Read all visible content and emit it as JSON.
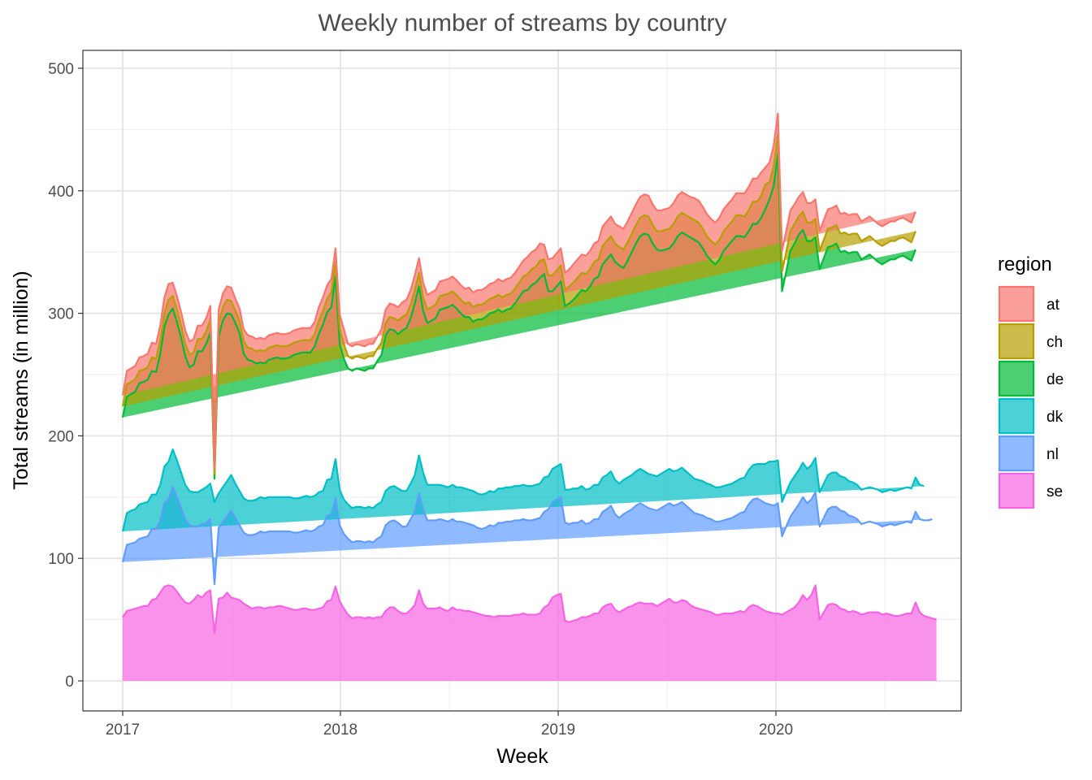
{
  "chart_data": {
    "type": "area",
    "stacked": true,
    "title": "Weekly number of streams by country",
    "xlabel": "Week",
    "ylabel": "Total streams (in million)",
    "x_start": "2017-01-01",
    "x_step": "1 week",
    "xlim": [
      2016.82,
      2020.85
    ],
    "ylim": [
      -23,
      523
    ],
    "x_ticks": [
      2017,
      2018,
      2019,
      2020
    ],
    "x_tick_labels": [
      "2017",
      "2018",
      "2019",
      "2020"
    ],
    "x_minor_ticks": [
      2017.5,
      2018.5,
      2019.5,
      2020.5
    ],
    "y_ticks": [
      0,
      100,
      200,
      300,
      400,
      500
    ],
    "y_tick_labels": [
      "0",
      "100",
      "200",
      "300",
      "400",
      "500"
    ],
    "y_minor_ticks": [
      50,
      150,
      250,
      350,
      450
    ],
    "grid": true,
    "legend": {
      "title": "region",
      "position": "right"
    },
    "stack_order_bottom_to_top": [
      "se",
      "nl",
      "dk",
      "de",
      "ch",
      "at"
    ],
    "series": [
      {
        "name": "at",
        "line_color": "#F8766D",
        "fill_color": "#F8766D",
        "values": [
          9,
          11,
          11,
          11,
          11,
          11,
          11,
          12,
          12,
          12,
          13,
          13,
          11,
          11,
          11,
          11,
          11,
          11,
          11,
          11,
          11,
          11,
          4,
          11,
          11,
          11,
          11,
          10,
          10,
          10,
          10,
          10,
          10,
          10,
          10,
          10,
          10,
          10,
          10,
          10,
          10,
          10,
          10,
          10,
          10,
          10,
          10,
          11,
          11,
          11,
          11,
          11,
          12,
          12,
          10,
          10,
          10,
          10,
          10,
          10,
          10,
          10,
          11,
          11,
          11,
          11,
          11,
          12,
          12,
          12,
          12,
          12,
          12,
          12,
          12,
          12,
          12,
          12,
          12,
          12,
          12,
          12,
          12,
          12,
          12,
          12,
          12,
          12,
          12,
          12,
          13,
          13,
          13,
          13,
          13,
          13,
          13,
          14,
          14,
          14,
          14,
          12,
          13,
          14,
          14,
          14,
          14,
          14,
          15,
          15,
          15,
          15,
          15,
          15,
          15,
          16,
          16,
          16,
          16,
          17,
          17,
          17,
          17,
          17,
          17,
          17,
          17,
          17,
          17,
          17,
          17,
          17,
          17,
          17,
          17,
          17,
          17,
          18,
          18,
          18,
          18,
          18,
          18,
          18,
          18,
          18,
          18,
          18,
          18,
          19,
          19,
          19,
          19,
          19,
          14,
          16,
          17,
          17,
          17,
          17,
          17,
          16,
          16,
          16,
          16,
          16,
          16,
          16,
          16,
          16,
          16,
          16,
          16,
          16,
          16,
          16,
          16,
          16,
          16,
          16,
          16,
          16,
          16,
          16,
          16,
          16,
          16,
          16,
          16,
          16,
          16,
          16,
          16
        ]
      },
      {
        "name": "ch",
        "line_color": "#B79F00",
        "fill_color": "#B79F00",
        "values": [
          9,
          10,
          10,
          10,
          10,
          10,
          10,
          11,
          11,
          11,
          11,
          12,
          10,
          10,
          10,
          10,
          10,
          10,
          10,
          10,
          10,
          11,
          4,
          11,
          11,
          11,
          11,
          10,
          10,
          10,
          10,
          10,
          10,
          10,
          10,
          10,
          10,
          10,
          10,
          10,
          10,
          10,
          10,
          10,
          10,
          10,
          10,
          11,
          11,
          11,
          12,
          12,
          12,
          12,
          10,
          10,
          10,
          10,
          10,
          10,
          10,
          10,
          10,
          10,
          10,
          10,
          11,
          11,
          11,
          11,
          11,
          11,
          11,
          11,
          11,
          11,
          11,
          11,
          11,
          11,
          11,
          11,
          11,
          12,
          12,
          12,
          12,
          12,
          12,
          12,
          12,
          12,
          12,
          12,
          12,
          12,
          12,
          13,
          13,
          13,
          14,
          12,
          13,
          13,
          13,
          13,
          13,
          14,
          14,
          14,
          14,
          14,
          14,
          14,
          14,
          15,
          15,
          15,
          15,
          15,
          15,
          15,
          15,
          15,
          15,
          15,
          15,
          15,
          15,
          16,
          16,
          16,
          16,
          16,
          16,
          16,
          16,
          16,
          16,
          16,
          16,
          16,
          16,
          16,
          16,
          16,
          16,
          17,
          17,
          17,
          17,
          18,
          18,
          18,
          20,
          14,
          16,
          16,
          16,
          16,
          16,
          16,
          15,
          15,
          15,
          15,
          15,
          15,
          15,
          15,
          15,
          15,
          15,
          15,
          15,
          15,
          15,
          15,
          15,
          15,
          15,
          15,
          15,
          15,
          15,
          15,
          15,
          15,
          15,
          15,
          15,
          15,
          15,
          15
        ]
      },
      {
        "name": "de",
        "line_color": "#00BA38",
        "fill_color": "#00BA38",
        "values": [
          93,
          95,
          95,
          96,
          99,
          99,
          100,
          101,
          100,
          107,
          114,
          120,
          115,
          113,
          110,
          105,
          101,
          104,
          115,
          113,
          117,
          123,
          19,
          128,
          136,
          137,
          131,
          131,
          129,
          118,
          115,
          114,
          111,
          110,
          110,
          112,
          113,
          114,
          113,
          113,
          114,
          117,
          118,
          118,
          117,
          118,
          122,
          129,
          136,
          137,
          140,
          149,
          119,
          115,
          111,
          112,
          113,
          112,
          112,
          113,
          114,
          117,
          120,
          127,
          129,
          127,
          126,
          131,
          133,
          135,
          140,
          138,
          132,
          132,
          134,
          136,
          143,
          145,
          147,
          147,
          146,
          142,
          140,
          141,
          138,
          142,
          143,
          144,
          145,
          147,
          146,
          144,
          145,
          146,
          149,
          154,
          158,
          160,
          164,
          165,
          168,
          166,
          151,
          145,
          147,
          149,
          150,
          152,
          154,
          158,
          160,
          162,
          165,
          168,
          170,
          174,
          176,
          177,
          178,
          178,
          173,
          177,
          182,
          186,
          190,
          194,
          195,
          189,
          185,
          182,
          181,
          180,
          186,
          191,
          192,
          193,
          194,
          195,
          194,
          190,
          186,
          183,
          182,
          186,
          192,
          195,
          198,
          200,
          198,
          196,
          195,
          197,
          196,
          201,
          208,
          214,
          225,
          250,
          172,
          180,
          189,
          190,
          192,
          190,
          186,
          183,
          180,
          182,
          184,
          186,
          185,
          187,
          183,
          185,
          186,
          188,
          190,
          188,
          189,
          190,
          188,
          186,
          186,
          187,
          188,
          189,
          190,
          190,
          187,
          186,
          186
        ]
      },
      {
        "name": "dk",
        "line_color": "#00BFC4",
        "fill_color": "#00BFC4",
        "values": [
          25,
          26,
          27,
          27,
          28,
          28,
          28,
          28,
          28,
          29,
          30,
          31,
          31,
          30,
          29,
          28,
          28,
          28,
          28,
          28,
          29,
          29,
          67,
          28,
          28,
          29,
          29,
          28,
          28,
          28,
          28,
          28,
          28,
          28,
          28,
          28,
          28,
          28,
          28,
          28,
          28,
          28,
          28,
          28,
          28,
          28,
          28,
          28,
          28,
          29,
          29,
          32,
          29,
          28,
          28,
          28,
          28,
          28,
          28,
          28,
          28,
          28,
          28,
          28,
          28,
          28,
          28,
          29,
          29,
          29,
          30,
          31,
          30,
          29,
          29,
          29,
          28,
          28,
          28,
          28,
          28,
          28,
          28,
          28,
          28,
          28,
          28,
          28,
          28,
          28,
          28,
          28,
          28,
          28,
          28,
          28,
          28,
          28,
          28,
          28,
          28,
          28,
          27,
          27,
          27,
          27,
          27,
          28,
          28,
          28,
          28,
          28,
          28,
          28,
          28,
          28,
          28,
          28,
          28,
          28,
          28,
          28,
          28,
          28,
          28,
          28,
          28,
          28,
          28,
          28,
          28,
          28,
          28,
          28,
          28,
          28,
          28,
          28,
          28,
          28,
          28,
          28,
          28,
          28,
          28,
          28,
          28,
          28,
          28,
          28,
          28,
          28,
          28,
          30,
          32,
          35,
          36,
          35,
          28,
          28,
          28,
          28,
          28,
          28,
          28,
          28,
          28,
          28,
          28,
          28,
          28,
          28,
          28,
          28,
          28,
          28,
          28,
          28,
          28,
          28,
          28,
          28,
          28,
          28,
          28,
          28,
          28,
          28,
          28,
          28,
          28,
          28,
          28
        ]
      },
      {
        "name": "nl",
        "line_color": "#619CFF",
        "fill_color": "#619CFF",
        "values": [
          45,
          54,
          54,
          54,
          56,
          56,
          57,
          58,
          57,
          59,
          68,
          70,
          81,
          77,
          73,
          68,
          64,
          60,
          56,
          60,
          57,
          58,
          40,
          58,
          62,
          62,
          71,
          66,
          61,
          58,
          58,
          60,
          60,
          62,
          62,
          62,
          62,
          61,
          61,
          62,
          63,
          63,
          63,
          63,
          64,
          64,
          65,
          67,
          67,
          70,
          70,
          72,
          62,
          61,
          62,
          62,
          62,
          62,
          62,
          62,
          62,
          64,
          66,
          70,
          70,
          71,
          72,
          71,
          71,
          74,
          76,
          79,
          77,
          72,
          72,
          72,
          72,
          73,
          73,
          72,
          72,
          72,
          72,
          71,
          71,
          70,
          70,
          72,
          74,
          74,
          76,
          76,
          77,
          77,
          77,
          77,
          77,
          77,
          77,
          78,
          78,
          78,
          78,
          78,
          78,
          79,
          80,
          80,
          80,
          79,
          79,
          76,
          76,
          77,
          77,
          78,
          78,
          80,
          78,
          77,
          78,
          78,
          79,
          80,
          81,
          80,
          78,
          77,
          78,
          78,
          78,
          78,
          79,
          80,
          80,
          78,
          78,
          77,
          77,
          77,
          76,
          76,
          76,
          76,
          76,
          77,
          78,
          79,
          80,
          82,
          84,
          86,
          88,
          88,
          88,
          88,
          88,
          90,
          64,
          70,
          76,
          79,
          80,
          80,
          79,
          78,
          76,
          76,
          77,
          78,
          79,
          80,
          80,
          80,
          79,
          77,
          76,
          74,
          74,
          74,
          73,
          72,
          72,
          72,
          74,
          74,
          75,
          75,
          75,
          74,
          74,
          76,
          78,
          79,
          81
        ]
      },
      {
        "name": "se",
        "line_color": "#F564E3",
        "fill_color": "#F564E3",
        "values": [
          52,
          57,
          58,
          59,
          60,
          61,
          61,
          66,
          67,
          72,
          77,
          78,
          77,
          73,
          68,
          64,
          63,
          66,
          70,
          68,
          72,
          74,
          39,
          67,
          68,
          72,
          68,
          67,
          66,
          63,
          61,
          59,
          60,
          60,
          59,
          60,
          60,
          61,
          61,
          60,
          59,
          58,
          58,
          59,
          59,
          58,
          58,
          59,
          60,
          65,
          66,
          77,
          65,
          59,
          54,
          51,
          52,
          52,
          51,
          52,
          51,
          52,
          52,
          57,
          60,
          60,
          57,
          55,
          55,
          58,
          62,
          74,
          63,
          59,
          59,
          59,
          60,
          58,
          57,
          60,
          58,
          58,
          57,
          57,
          56,
          55,
          54,
          53,
          53,
          52,
          53,
          53,
          53,
          53,
          54,
          54,
          55,
          54,
          54,
          54,
          55,
          60,
          62,
          68,
          70,
          71,
          49,
          48,
          49,
          50,
          52,
          52,
          53,
          55,
          55,
          60,
          62,
          63,
          58,
          56,
          58,
          60,
          61,
          63,
          64,
          63,
          63,
          63,
          61,
          63,
          65,
          67,
          64,
          64,
          66,
          65,
          62,
          60,
          59,
          58,
          57,
          56,
          54,
          54,
          55,
          55,
          55,
          56,
          57,
          56,
          60,
          62,
          61,
          59,
          57,
          56,
          55,
          55,
          54,
          56,
          58,
          60,
          64,
          70,
          66,
          70,
          78,
          50,
          56,
          62,
          63,
          62,
          59,
          58,
          56,
          57,
          56,
          54,
          55,
          56,
          56,
          56,
          54,
          55,
          54,
          53,
          53,
          54,
          55,
          55,
          64,
          56,
          53,
          52,
          51,
          50
        ]
      }
    ]
  }
}
